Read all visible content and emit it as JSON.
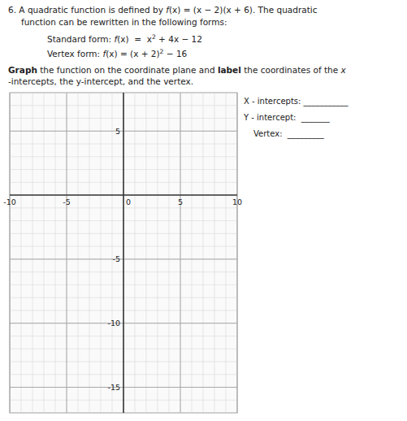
{
  "chart_data": {
    "type": "coordinate_plane",
    "annotations": [
      [
        "6. A quadratic function is defined by ",
        "f",
        "(x) = (x − 2)(x + 6). The quadratic"
      ],
      [
        "function can be rewritten in the following forms:"
      ],
      [
        "Standard form: ",
        "f",
        "(x)  =  x",
        "2",
        " + 4x − 12"
      ],
      [
        "Vertex form: ",
        "f",
        "(x) = (x + 2)",
        "2",
        " − 16"
      ],
      [
        "Graph",
        " the function on the coordinate plane and ",
        "label",
        " the coordinates of the ",
        "x"
      ],
      [
        "-intercepts, the y-intercept, and the vertex."
      ],
      [
        "X - intercepts: ___________"
      ],
      [
        "Y - intercept:  _______"
      ],
      [
        "Vertex:  _________"
      ]
    ],
    "xlim": [
      -10,
      10
    ],
    "ylim": [
      -17,
      8
    ],
    "xticks": [
      -10,
      -5,
      0,
      5,
      10
    ],
    "yticks": [
      -15,
      -10,
      -5,
      5
    ],
    "grid": true
  }
}
